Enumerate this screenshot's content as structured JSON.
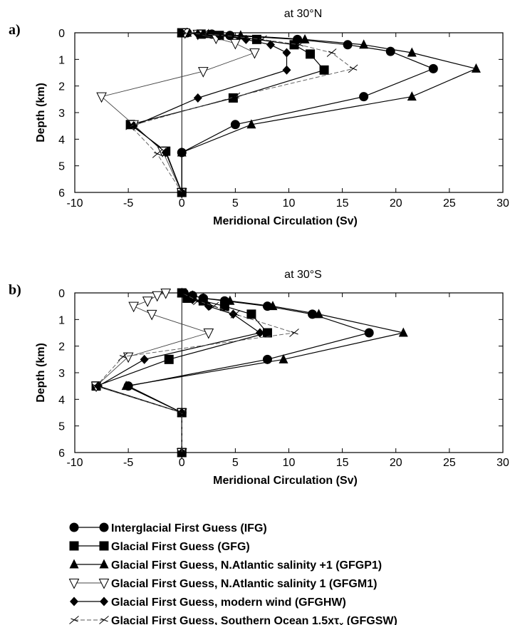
{
  "chart_data": [
    {
      "type": "line",
      "panel_label": "a)",
      "title": "at 30°N",
      "xlabel": "Meridional Circulation (Sv)",
      "ylabel": "Depth (km)",
      "xlim": [
        -10,
        30
      ],
      "ylim": [
        6,
        0
      ],
      "xticks": [
        "-10",
        "-5",
        "0",
        "5",
        "10",
        "15",
        "20",
        "25",
        "30"
      ],
      "yticks": [
        "0",
        "1",
        "2",
        "3",
        "4",
        "5",
        "6"
      ],
      "series": [
        {
          "key": "IFG",
          "points": [
            [
              0,
              6
            ],
            [
              0,
              4.5
            ],
            [
              5,
              3.45
            ],
            [
              17,
              2.4
            ],
            [
              23.5,
              1.35
            ],
            [
              19.5,
              0.7
            ],
            [
              15.5,
              0.45
            ],
            [
              10.8,
              0.25
            ],
            [
              4.5,
              0.1
            ],
            [
              2.8,
              0.05
            ],
            [
              0.5,
              0
            ]
          ]
        },
        {
          "key": "GFG",
          "points": [
            [
              0,
              6
            ],
            [
              -1.5,
              4.45
            ],
            [
              -4.8,
              3.45
            ],
            [
              4.8,
              2.45
            ],
            [
              13.3,
              1.4
            ],
            [
              12,
              0.8
            ],
            [
              10.5,
              0.45
            ],
            [
              7,
              0.25
            ],
            [
              3.5,
              0.1
            ],
            [
              1.8,
              0.05
            ],
            [
              0,
              0
            ]
          ]
        },
        {
          "key": "GFGP1",
          "points": [
            [
              0,
              6
            ],
            [
              0,
              4.5
            ],
            [
              6.5,
              3.45
            ],
            [
              21.5,
              2.4
            ],
            [
              27.5,
              1.35
            ],
            [
              21.5,
              0.75
            ],
            [
              17,
              0.45
            ],
            [
              11.5,
              0.25
            ],
            [
              5.5,
              0.1
            ],
            [
              2.5,
              0.05
            ],
            [
              0.5,
              0
            ]
          ]
        },
        {
          "key": "GFGM1",
          "points": [
            [
              0,
              6
            ],
            [
              -1.8,
              4.45
            ],
            [
              -4.5,
              3.45
            ],
            [
              -7.5,
              2.4
            ],
            [
              2,
              1.45
            ],
            [
              6.8,
              0.75
            ],
            [
              5,
              0.4
            ],
            [
              3.2,
              0.2
            ],
            [
              1.5,
              0.05
            ],
            [
              0.3,
              0
            ]
          ]
        },
        {
          "key": "GFGHW",
          "points": [
            [
              0,
              6
            ],
            [
              -1.5,
              4.5
            ],
            [
              -4.5,
              3.5
            ],
            [
              1.5,
              2.45
            ],
            [
              9.8,
              1.4
            ],
            [
              9.8,
              0.75
            ],
            [
              8.3,
              0.45
            ],
            [
              6,
              0.25
            ],
            [
              3.5,
              0.1
            ],
            [
              1.5,
              0.05
            ],
            [
              0,
              0
            ]
          ]
        },
        {
          "key": "GFGSW",
          "points": [
            [
              0,
              6
            ],
            [
              -2.3,
              4.55
            ],
            [
              -4.8,
              3.5
            ],
            [
              5,
              2.4
            ],
            [
              16,
              1.35
            ],
            [
              14,
              0.75
            ],
            [
              11,
              0.45
            ],
            [
              7.5,
              0.25
            ],
            [
              4,
              0.1
            ],
            [
              2,
              0.05
            ],
            [
              0,
              0
            ]
          ]
        }
      ]
    },
    {
      "type": "line",
      "panel_label": "b)",
      "title": "at 30°S",
      "xlabel": "Meridional Circulation (Sv)",
      "ylabel": "Depth (km)",
      "xlim": [
        -10,
        30
      ],
      "ylim": [
        6,
        0
      ],
      "xticks": [
        "-10",
        "-5",
        "0",
        "5",
        "10",
        "15",
        "20",
        "25",
        "30"
      ],
      "yticks": [
        "0",
        "1",
        "2",
        "3",
        "4",
        "5",
        "6"
      ],
      "series": [
        {
          "key": "IFG",
          "points": [
            [
              0,
              6
            ],
            [
              0,
              4.5
            ],
            [
              -5,
              3.5
            ],
            [
              8,
              2.5
            ],
            [
              17.5,
              1.5
            ],
            [
              12.2,
              0.8
            ],
            [
              8,
              0.5
            ],
            [
              4,
              0.3
            ],
            [
              2,
              0.2
            ],
            [
              1,
              0.1
            ],
            [
              0.2,
              0
            ]
          ]
        },
        {
          "key": "GFG",
          "points": [
            [
              0,
              6
            ],
            [
              0,
              4.5
            ],
            [
              -8,
              3.5
            ],
            [
              -1.2,
              2.5
            ],
            [
              8,
              1.5
            ],
            [
              6.5,
              0.8
            ],
            [
              4,
              0.5
            ],
            [
              2,
              0.3
            ],
            [
              0.5,
              0.2
            ],
            [
              0,
              0
            ]
          ]
        },
        {
          "key": "GFGP1",
          "points": [
            [
              0,
              6
            ],
            [
              0,
              4.5
            ],
            [
              -5.2,
              3.5
            ],
            [
              9.5,
              2.5
            ],
            [
              20.7,
              1.5
            ],
            [
              12.8,
              0.8
            ],
            [
              8.5,
              0.5
            ],
            [
              4.5,
              0.3
            ],
            [
              2,
              0.2
            ],
            [
              1,
              0.1
            ],
            [
              0,
              0
            ]
          ]
        },
        {
          "key": "GFGM1",
          "points": [
            [
              0,
              6
            ],
            [
              0,
              4.5
            ],
            [
              -8,
              3.5
            ],
            [
              -5,
              2.4
            ],
            [
              2.5,
              1.5
            ],
            [
              -2.8,
              0.8
            ],
            [
              -4.5,
              0.5
            ],
            [
              -3.2,
              0.3
            ],
            [
              -2.3,
              0.1
            ],
            [
              -1.5,
              0
            ]
          ]
        },
        {
          "key": "GFGHW",
          "points": [
            [
              0,
              6
            ],
            [
              0,
              4.5
            ],
            [
              -7.8,
              3.5
            ],
            [
              -3.5,
              2.5
            ],
            [
              7.3,
              1.5
            ],
            [
              4.8,
              0.8
            ],
            [
              2.5,
              0.5
            ],
            [
              1,
              0.25
            ],
            [
              0,
              0
            ]
          ]
        },
        {
          "key": "GFGSW",
          "points": [
            [
              0,
              6
            ],
            [
              0,
              4.5
            ],
            [
              -8,
              3.5
            ],
            [
              -5.5,
              2.4
            ],
            [
              10.5,
              1.5
            ],
            [
              5,
              0.8
            ],
            [
              3,
              0.5
            ],
            [
              1.5,
              0.3
            ],
            [
              0,
              0
            ]
          ]
        }
      ]
    }
  ],
  "legend": [
    {
      "key": "IFG",
      "label": "Interglacial First Guess (IFG)",
      "marker": "circle"
    },
    {
      "key": "GFG",
      "label": "Glacial First Guess (GFG)",
      "marker": "square"
    },
    {
      "key": "GFGP1",
      "label": "Glacial First Guess, N.Atlantic salinity +1 (GFGP1)",
      "marker": "triangle-up"
    },
    {
      "key": "GFGM1",
      "label": "Glacial First Guess, N.Atlantic salinity 1 (GFGM1)",
      "marker": "triangle-down-open"
    },
    {
      "key": "GFGHW",
      "label": "Glacial First Guess, modern wind (GFGHW)",
      "marker": "diamond"
    },
    {
      "key": "GFGSW",
      "label": "Glacial First Guess, Southern Ocean 1.5xτ",
      "label_subscript": "x",
      "label_suffix": " (GFGSW)",
      "marker": "sketch-open"
    }
  ]
}
